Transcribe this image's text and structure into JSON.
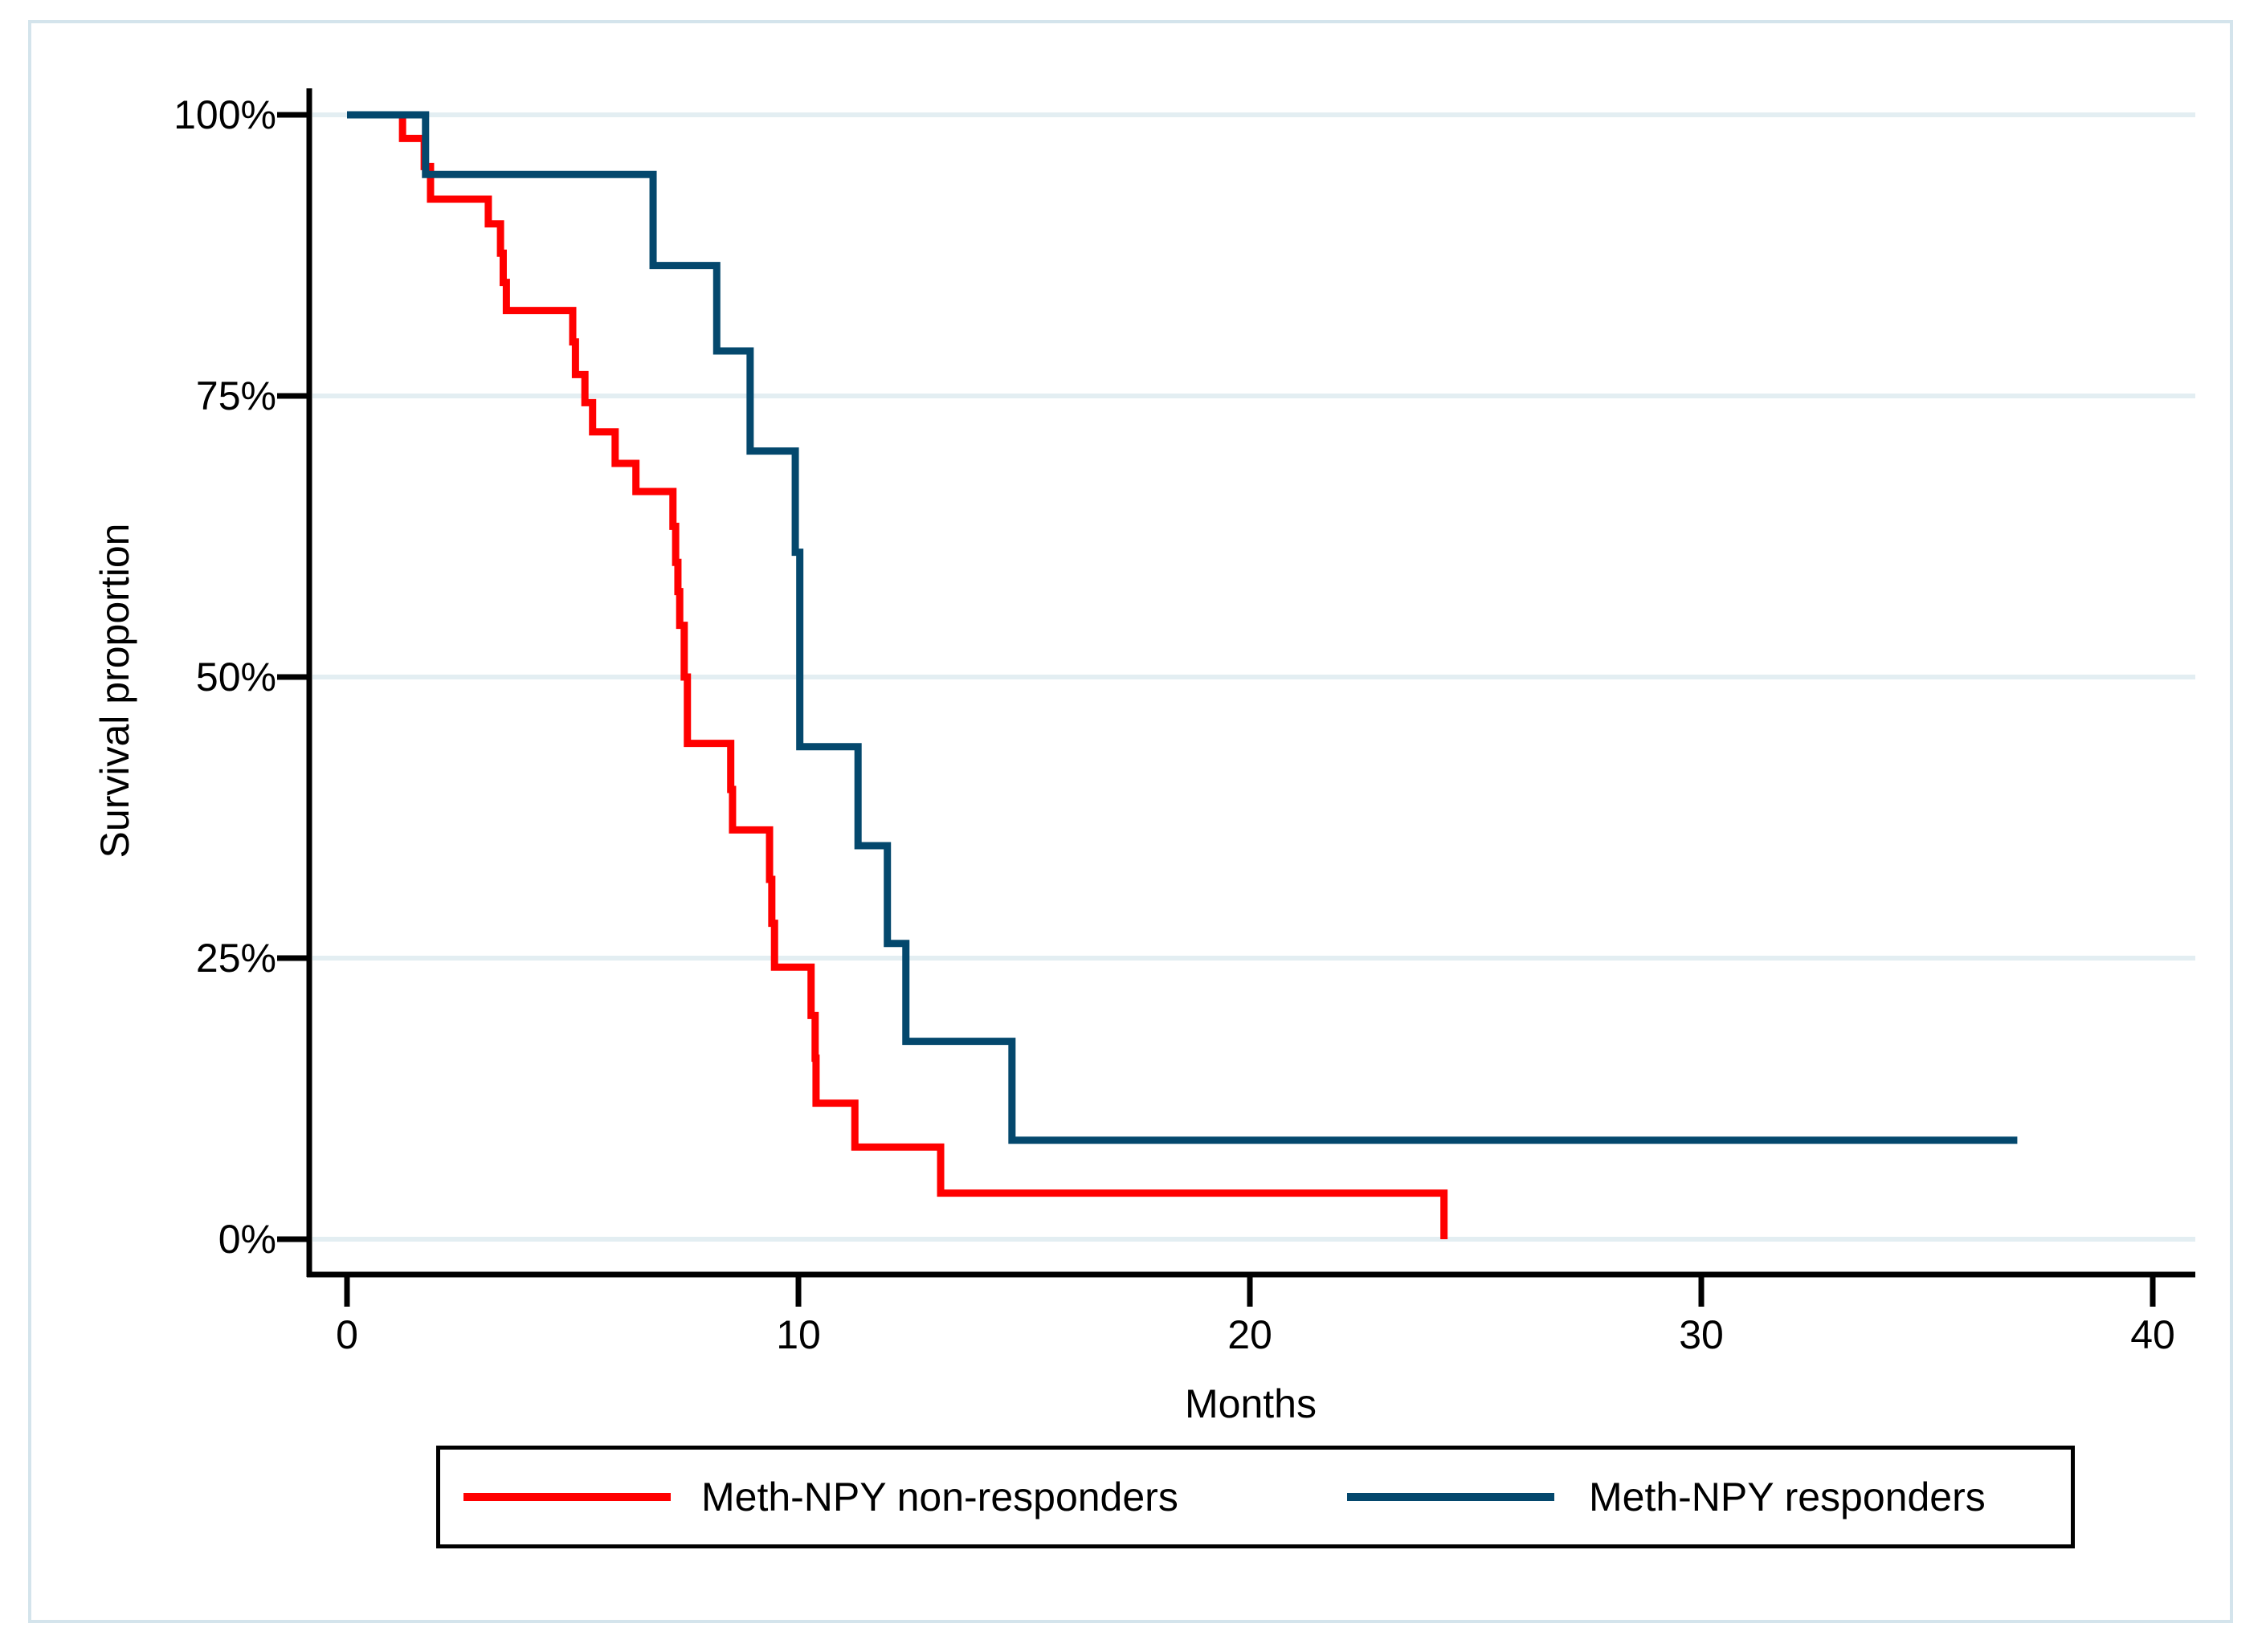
{
  "y_axis": {
    "label": "Survival proportion",
    "ticks": [
      {
        "label": "100%",
        "value": 100
      },
      {
        "label": "75%",
        "value": 75
      },
      {
        "label": "50%",
        "value": 50
      },
      {
        "label": "25%",
        "value": 25
      },
      {
        "label": "0%",
        "value": 0
      }
    ]
  },
  "x_axis": {
    "label": "Months",
    "ticks": [
      {
        "label": "0",
        "value": 0
      },
      {
        "label": "10",
        "value": 10
      },
      {
        "label": "20",
        "value": 20
      },
      {
        "label": "30",
        "value": 30
      },
      {
        "label": "40",
        "value": 40
      }
    ]
  },
  "legend": {
    "items": [
      {
        "label": "Meth-NPY non-responders",
        "series": "non_responders"
      },
      {
        "label": "Meth-NPY responders",
        "series": "responders"
      }
    ]
  },
  "colors": {
    "non_responders": "#ff0000",
    "responders": "#04486d",
    "grid": "#e3eef2",
    "axis": "#000000",
    "frame": "#d4e4ec",
    "background": "#ffffff"
  },
  "chart_data": {
    "type": "line",
    "subtype": "kaplan-meier-step",
    "title": "",
    "xlabel": "Months",
    "ylabel": "Survival proportion",
    "xlim": [
      0,
      40
    ],
    "ylim": [
      0,
      100
    ],
    "x_ticks": [
      0,
      10,
      20,
      30,
      40
    ],
    "y_ticks_percent": [
      0,
      25,
      50,
      75,
      100
    ],
    "grid": true,
    "legend_position": "bottom",
    "series": [
      {
        "name": "Meth-NPY non-responders",
        "color": "#ff0000",
        "end_time": 24.3,
        "end_drop_to_zero": true,
        "points": [
          [
            0,
            100
          ],
          [
            1.23,
            97.9
          ],
          [
            1.71,
            95.4
          ],
          [
            1.85,
            92.5
          ],
          [
            3.13,
            90.3
          ],
          [
            3.4,
            87.7
          ],
          [
            3.46,
            85.1
          ],
          [
            3.53,
            82.6
          ],
          [
            5.0,
            79.8
          ],
          [
            5.06,
            76.9
          ],
          [
            5.27,
            74.4
          ],
          [
            5.44,
            71.8
          ],
          [
            5.94,
            69.0
          ],
          [
            6.4,
            66.5
          ],
          [
            7.22,
            63.4
          ],
          [
            7.28,
            60.2
          ],
          [
            7.33,
            57.6
          ],
          [
            7.37,
            54.6
          ],
          [
            7.47,
            50.0
          ],
          [
            7.54,
            44.1
          ],
          [
            8.5,
            40.0
          ],
          [
            8.54,
            36.4
          ],
          [
            9.36,
            32.0
          ],
          [
            9.41,
            28.1
          ],
          [
            9.47,
            24.2
          ],
          [
            10.28,
            19.9
          ],
          [
            10.37,
            16.1
          ],
          [
            10.39,
            12.1
          ],
          [
            11.25,
            8.2
          ],
          [
            13.15,
            4.1
          ],
          [
            24.3,
            0
          ]
        ]
      },
      {
        "name": "Meth-NPY responders",
        "color": "#04486d",
        "end_time": 37.0,
        "end_drop_to_zero": false,
        "points": [
          [
            0,
            100
          ],
          [
            1.74,
            94.7
          ],
          [
            6.78,
            86.6
          ],
          [
            8.19,
            79.0
          ],
          [
            8.93,
            70.1
          ],
          [
            9.93,
            61.1
          ],
          [
            10.03,
            43.8
          ],
          [
            11.32,
            35.0
          ],
          [
            11.97,
            26.3
          ],
          [
            12.38,
            17.6
          ],
          [
            14.73,
            8.8
          ]
        ]
      }
    ]
  }
}
